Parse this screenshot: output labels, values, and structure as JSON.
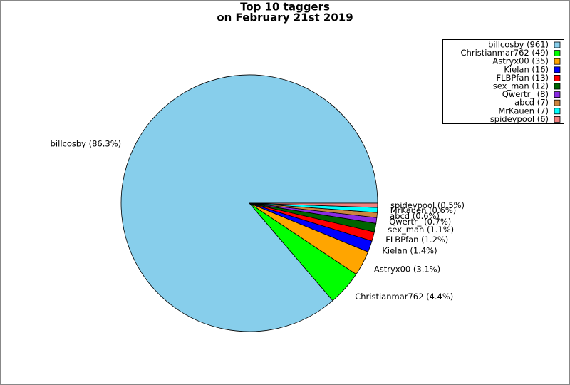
{
  "chart_data": {
    "type": "pie",
    "title": [
      "Top 10 taggers",
      "on February 21st 2019"
    ],
    "values": [
      961,
      49,
      35,
      16,
      13,
      12,
      8,
      7,
      7,
      6
    ],
    "legend_labels": [
      "billcosby (961)",
      "Christianmar762 (49)",
      "Astryx00 (35)",
      "Kielan (16)",
      "FLBPfan (13)",
      "sex_man (12)",
      "Qwertr_ (8)",
      "abcd (7)",
      "MrKauen (7)",
      "spideypool (6)"
    ],
    "value_labels": [
      "billcosby (86.3%)",
      "Christianmar762 (4.4%)",
      "Astryx00 (3.1%)",
      "Kielan (1.4%)",
      "FLBPfan (1.2%)",
      "sex_man (1.1%)",
      "Qwertr_ (0.7%)",
      "abcd (0.6%)",
      "MrKauen (0.6%)",
      "spideypool (0.5%)"
    ],
    "colors": [
      "#87ceeb",
      "#00ff00",
      "#ffa500",
      "#0000ff",
      "#ff0000",
      "#006400",
      "#8a2be2",
      "#cd853f",
      "#00ffff",
      "#f08080"
    ],
    "legend": "upper right"
  }
}
